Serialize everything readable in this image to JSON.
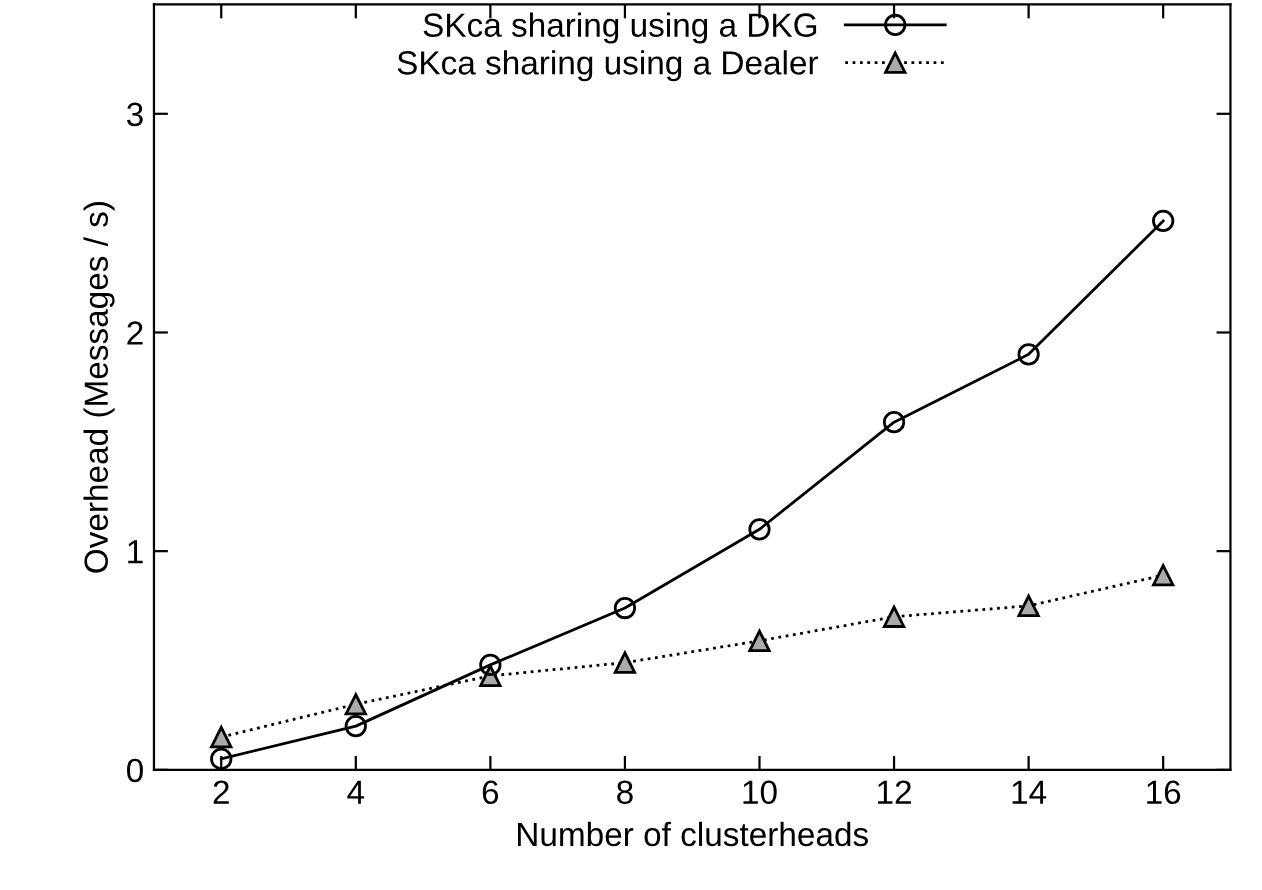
{
  "chart_data": {
    "type": "line",
    "xlabel": "Number of clusterheads",
    "ylabel": "Overhead (Messages / s)",
    "x": [
      2,
      4,
      6,
      8,
      10,
      12,
      14,
      16
    ],
    "series": [
      {
        "name": "SKca sharing using a DKG",
        "color": "#000000",
        "values": [
          0.05,
          0.2,
          0.48,
          0.74,
          1.1,
          1.59,
          1.9,
          2.51
        ],
        "marker": "circle",
        "line_style": "solid"
      },
      {
        "name": "SKca sharing using a Dealer",
        "color": "#000000",
        "values": [
          0.15,
          0.3,
          0.43,
          0.49,
          0.59,
          0.7,
          0.75,
          0.89
        ],
        "marker": "triangle",
        "line_style": "dotted"
      }
    ],
    "xlim": [
      1,
      17
    ],
    "xticks": [
      2,
      4,
      6,
      8,
      10,
      12,
      14,
      16
    ],
    "ylim": [
      0,
      3.5
    ],
    "yticks": [
      0,
      1,
      2,
      3
    ],
    "grid": false,
    "legend": "top"
  }
}
